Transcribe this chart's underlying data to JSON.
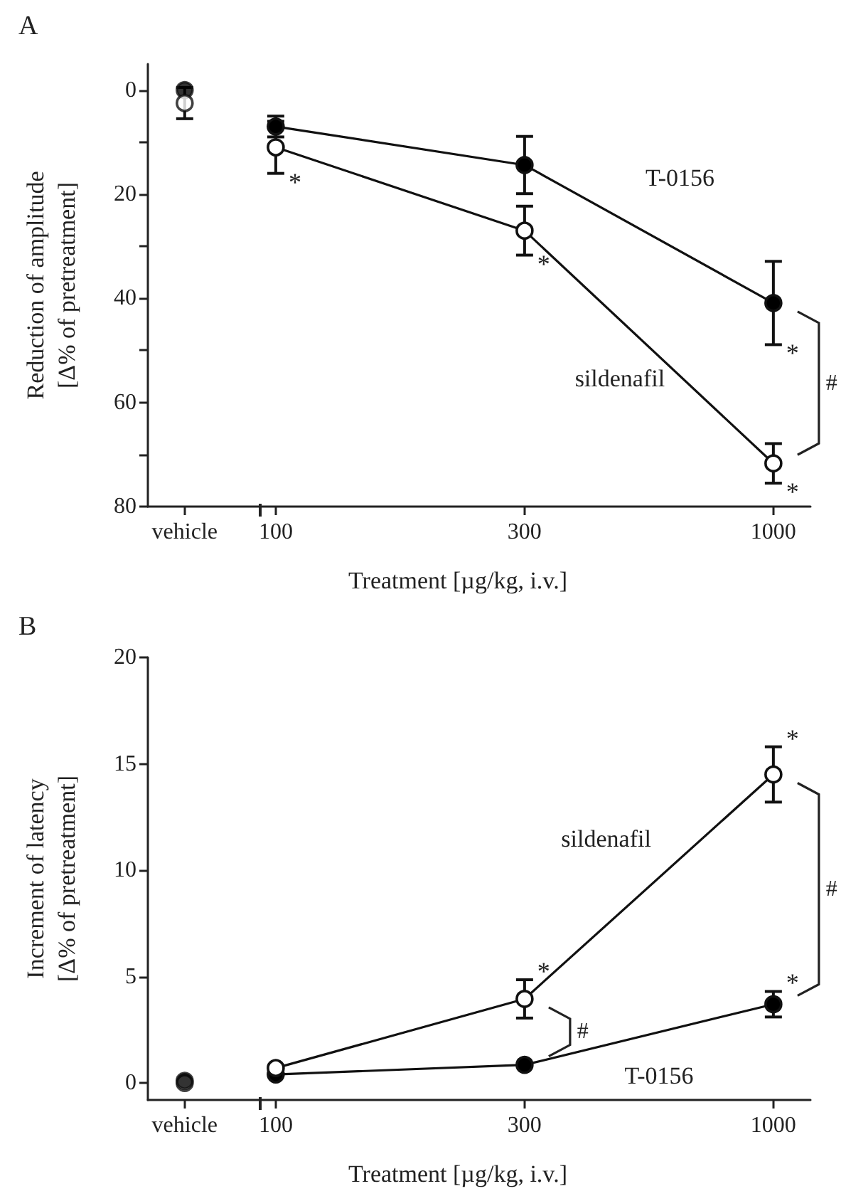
{
  "chart_data": [
    {
      "type": "line",
      "title": "A",
      "xlabel": "Treatment [µg/kg, i.v.]",
      "ylabel": "Reduction of amplitude\n[Δ% of pretreatment]",
      "categories": [
        "vehicle",
        "100",
        "300",
        "1000"
      ],
      "ylim": [
        80,
        -5
      ],
      "yticks": [
        0,
        {
          "value": 10,
          "label": null
        },
        20,
        {
          "value": 30,
          "label": null
        },
        40,
        {
          "value": 50,
          "label": null
        },
        60,
        {
          "value": 70,
          "label": null
        },
        80
      ],
      "series": [
        {
          "name": "T-0156",
          "color": "#000000",
          "values": [
            null,
            7,
            14.4,
            40.9
          ],
          "errors": [
            null,
            2,
            5.5,
            8
          ]
        },
        {
          "name": "sildenafil",
          "color": "#ffffff",
          "values": [
            null,
            11,
            27,
            71.7
          ],
          "errors": [
            null,
            5,
            4.7,
            3.8
          ]
        },
        {
          "type": "scatter",
          "color": "#000000",
          "values": [
            0,
            null,
            null,
            null
          ]
        },
        {
          "type": "scatter",
          "color": "#ffffff",
          "values": [
            2.5,
            null,
            null,
            null
          ],
          "errors": [
            3,
            null,
            null,
            null
          ]
        }
      ],
      "annotations": [
        {
          "text": "*",
          "x": "100",
          "y": 11
        },
        {
          "text": "*",
          "x": "300",
          "y": 27
        },
        {
          "text": "*",
          "x": "1000",
          "y": 40.9
        },
        {
          "text": "*",
          "x": "1000",
          "y": 71.7
        },
        "#"
      ],
      "grid": false,
      "marker": "circle",
      "line_style": "solid",
      "legend": false
    },
    {
      "type": "line",
      "title": "B",
      "xlabel": "Treatment [µg/kg, i.v.]",
      "ylabel": "Increment of latency\n[Δ% of pretreatment]",
      "categories": [
        "vehicle",
        "100",
        "300",
        "1000"
      ],
      "ylim": [
        -0.8,
        20
      ],
      "yticks": [
        0,
        5,
        10,
        15,
        20
      ],
      "series": [
        {
          "name": "T-0156",
          "color": "#000000",
          "values": [
            null,
            0.4,
            0.85,
            3.7
          ],
          "errors": [
            null,
            null,
            null,
            0.6
          ]
        },
        {
          "name": "sildenafil",
          "color": "#ffffff",
          "values": [
            null,
            0.7,
            3.95,
            14.5
          ],
          "errors": [
            null,
            null,
            0.9,
            1.3
          ]
        },
        {
          "type": "scatter",
          "color": "#ffffff",
          "values": [
            0,
            null,
            null,
            null
          ]
        },
        {
          "type": "scatter",
          "color": "#000000",
          "values": [
            0.1,
            null,
            null,
            null
          ]
        }
      ],
      "annotations": [
        {
          "text": "*",
          "x": "300",
          "y": 3.95
        },
        {
          "text": "*",
          "x": "1000",
          "y": 14.5
        },
        {
          "text": "*",
          "x": "1000",
          "y": 3.7
        },
        "#",
        "#"
      ],
      "grid": false,
      "marker": "circle",
      "line_style": "solid",
      "legend": false
    }
  ]
}
